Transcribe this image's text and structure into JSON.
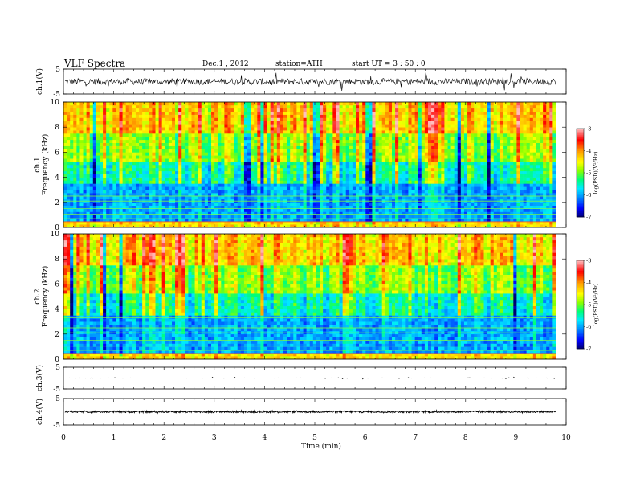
{
  "header": {
    "title": "VLF  Spectra",
    "date": "Dec.1   , 2012",
    "station": "station=ATH",
    "start_ut": "start  UT  =    3   : 50 : 0"
  },
  "chart_data": [
    {
      "type": "line",
      "panel": "ch1-waveform",
      "ylabel": "ch.1(V)",
      "ylim": [
        -5,
        5
      ],
      "y_ticks": [
        "5",
        "-5"
      ],
      "xlim": [
        0,
        10
      ],
      "data_end_min": 9.8,
      "description_values": {
        "baseline": 0,
        "typical_amplitude": 1.2,
        "spike_amplitude": 3.5
      }
    },
    {
      "type": "heatmap",
      "panel": "ch1-spectrogram",
      "ylabel": "ch.1\nFrequency  (kHz)",
      "ylim_khz": [
        0,
        10
      ],
      "y_ticks": [
        "0",
        "2",
        "4",
        "6",
        "8",
        "10"
      ],
      "xlim_min": [
        0,
        10
      ],
      "data_end_min": 9.8,
      "colorbar": {
        "label": "log(PSD)(V²/Hz)",
        "range": [
          -7,
          -3
        ],
        "ticks": [
          "-3",
          "-4",
          "-5",
          "-6",
          "-7"
        ],
        "colors": [
          "#000080",
          "#0000ff",
          "#00aaff",
          "#00ffff",
          "#00ff66",
          "#88ff00",
          "#ffff00",
          "#ff9900",
          "#ff0000",
          "#ffaaaa"
        ]
      }
    },
    {
      "type": "heatmap",
      "panel": "ch2-spectrogram",
      "ylabel": "ch.2\nFrequency  (kHz)",
      "ylim_khz": [
        0,
        10
      ],
      "y_ticks": [
        "0",
        "2",
        "4",
        "6",
        "8",
        "10"
      ],
      "xlim_min": [
        0,
        10
      ],
      "data_end_min": 9.8,
      "colorbar": {
        "label": "log(PSD)(V²/Hz)",
        "range": [
          -7,
          -3
        ],
        "ticks": [
          "-3",
          "-4",
          "-5",
          "-6",
          "-7"
        ]
      }
    },
    {
      "type": "line",
      "panel": "ch3-waveform",
      "ylabel": "ch.3(V)",
      "ylim": [
        -5,
        5
      ],
      "y_ticks": [
        "5",
        "-5"
      ],
      "description_values": {
        "baseline": 0,
        "amplitude": 0.1
      }
    },
    {
      "type": "line",
      "panel": "ch4-waveform",
      "ylabel": "ch.4(V)",
      "ylim": [
        -5,
        5
      ],
      "y_ticks": [
        "5",
        "-5"
      ],
      "description_values": {
        "baseline": 0,
        "amplitude": 0.4
      }
    }
  ],
  "xaxis": {
    "label": "Time  (min)",
    "ticks": [
      "0",
      "1",
      "2",
      "3",
      "4",
      "5",
      "6",
      "7",
      "8",
      "9",
      "10"
    ]
  }
}
